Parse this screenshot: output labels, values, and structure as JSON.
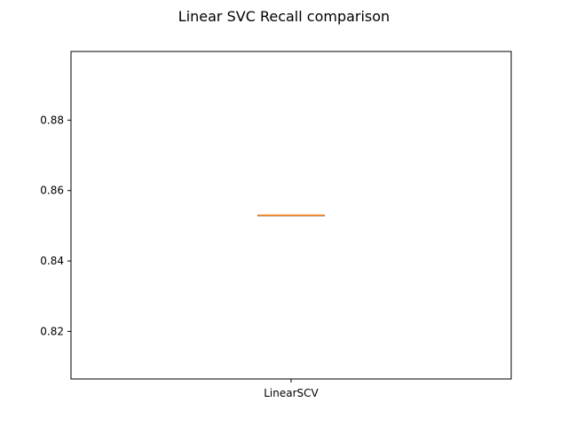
{
  "chart_data": {
    "type": "box",
    "title": "Linear SVC Recall comparison",
    "xlabel": "",
    "ylabel": "",
    "categories": [
      "LinearSCV"
    ],
    "boxes": [
      {
        "label": "LinearSCV",
        "min": 0.853,
        "q1": 0.853,
        "median": 0.853,
        "q3": 0.853,
        "max": 0.853
      }
    ],
    "ylim": [
      0.8065,
      0.8995
    ],
    "yticks": [
      0.82,
      0.84,
      0.86,
      0.88
    ],
    "ytick_labels": [
      "0.82",
      "0.84",
      "0.86",
      "0.88"
    ],
    "grid": false,
    "colors": {
      "median": "#ff7f0e",
      "box": "#000000"
    }
  }
}
